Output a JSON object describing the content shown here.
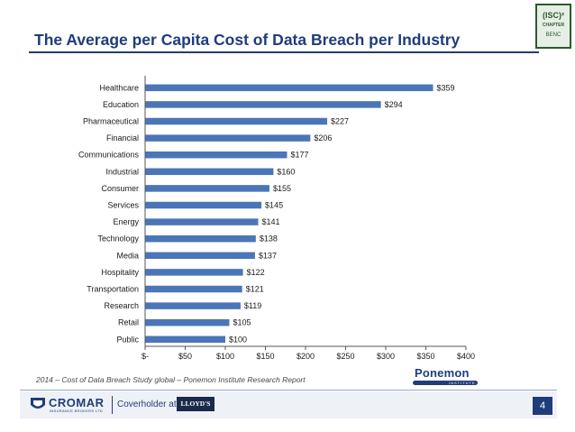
{
  "slide": {
    "title": "The Average per Capita Cost of Data Breach per Industry",
    "source_note": "2014 – Cost of Data Breach Study global – Ponemon Institute Research Report",
    "page_number": "4"
  },
  "logos": {
    "isc_badge": {
      "top": "(ISC)²",
      "middle": "CHAPTER",
      "bottom": "BENC"
    },
    "ponemon": {
      "name": "Ponemon",
      "sub": "INSTITUTE"
    },
    "cromar": {
      "name": "CROMAR",
      "sub": "INSURANCE BROKERS LTD"
    },
    "coverholder_text": "Coverholder at",
    "lloyds": "LLOYD'S"
  },
  "colors": {
    "title": "#1f3d7a",
    "bar": "#4a76b8",
    "accent": "#1f3d7a"
  },
  "chart_data": {
    "type": "bar",
    "orientation": "horizontal",
    "categories": [
      "Healthcare",
      "Education",
      "Pharmaceutical",
      "Financial",
      "Communications",
      "Industrial",
      "Consumer",
      "Services",
      "Energy",
      "Technology",
      "Media",
      "Hospitality",
      "Transportation",
      "Research",
      "Retail",
      "Public"
    ],
    "values": [
      359,
      294,
      227,
      206,
      177,
      160,
      155,
      145,
      141,
      138,
      137,
      122,
      121,
      119,
      105,
      100
    ],
    "value_labels": [
      "$359",
      "$294",
      "$227",
      "$206",
      "$177",
      "$160",
      "$155",
      "$145",
      "$141",
      "$138",
      "$137",
      "$122",
      "$121",
      "$119",
      "$105",
      "$100"
    ],
    "x_ticks": [
      0,
      50,
      100,
      150,
      200,
      250,
      300,
      350,
      400
    ],
    "x_tick_labels": [
      "$-",
      "$50",
      "$100",
      "$150",
      "$200",
      "$250",
      "$300",
      "$350",
      "$400"
    ],
    "xlim": [
      0,
      400
    ],
    "grid": false,
    "legend": "none"
  }
}
